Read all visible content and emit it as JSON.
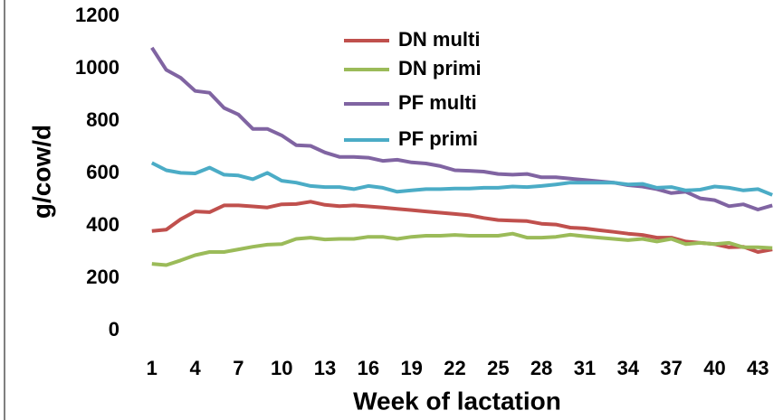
{
  "chart_data": {
    "type": "line",
    "x_label": "Week of  lactation",
    "y_label": "g/cow/d",
    "x": [
      1,
      2,
      3,
      4,
      5,
      6,
      7,
      8,
      9,
      10,
      11,
      12,
      13,
      14,
      15,
      16,
      17,
      18,
      19,
      20,
      21,
      22,
      23,
      24,
      25,
      26,
      27,
      28,
      29,
      30,
      31,
      32,
      33,
      34,
      35,
      36,
      37,
      38,
      39,
      40,
      41,
      42,
      43,
      44
    ],
    "series": [
      {
        "name": "DN multi",
        "color": "#c0504d",
        "values": [
          380,
          385,
          425,
          455,
          452,
          478,
          478,
          474,
          470,
          482,
          483,
          492,
          480,
          475,
          478,
          474,
          470,
          465,
          460,
          455,
          450,
          445,
          440,
          430,
          422,
          420,
          418,
          408,
          405,
          393,
          390,
          383,
          377,
          370,
          365,
          355,
          355,
          340,
          335,
          330,
          318,
          320,
          300,
          310
        ]
      },
      {
        "name": "DN primi",
        "color": "#9bbb59",
        "values": [
          255,
          250,
          268,
          288,
          300,
          300,
          310,
          320,
          328,
          330,
          350,
          355,
          348,
          350,
          350,
          358,
          358,
          350,
          358,
          362,
          362,
          365,
          362,
          362,
          362,
          370,
          355,
          355,
          358,
          366,
          360,
          355,
          350,
          345,
          350,
          340,
          350,
          330,
          335,
          330,
          335,
          318,
          318,
          315
        ]
      },
      {
        "name": "PF multi",
        "color": "#8064a2",
        "values": [
          1080,
          995,
          965,
          915,
          908,
          850,
          825,
          770,
          770,
          745,
          708,
          705,
          680,
          663,
          663,
          660,
          648,
          652,
          642,
          638,
          628,
          612,
          610,
          607,
          598,
          595,
          598,
          585,
          585,
          580,
          575,
          570,
          565,
          555,
          550,
          540,
          525,
          530,
          505,
          498,
          475,
          482,
          462,
          478
        ]
      },
      {
        "name": "PF primi",
        "color": "#4bacc6",
        "values": [
          640,
          612,
          602,
          600,
          622,
          595,
          592,
          578,
          602,
          572,
          565,
          552,
          548,
          548,
          540,
          552,
          545,
          530,
          535,
          540,
          540,
          542,
          542,
          545,
          545,
          550,
          548,
          552,
          558,
          565,
          565,
          565,
          565,
          558,
          560,
          545,
          548,
          535,
          538,
          550,
          545,
          535,
          540,
          518
        ]
      }
    ],
    "xlim": [
      0.2,
      44.3
    ],
    "xticks": [
      1,
      4,
      7,
      10,
      13,
      16,
      19,
      22,
      25,
      28,
      31,
      34,
      37,
      40,
      43
    ],
    "ylim": [
      0,
      1200
    ],
    "yticks": [
      0,
      200,
      400,
      600,
      800,
      1000,
      1200
    ]
  }
}
